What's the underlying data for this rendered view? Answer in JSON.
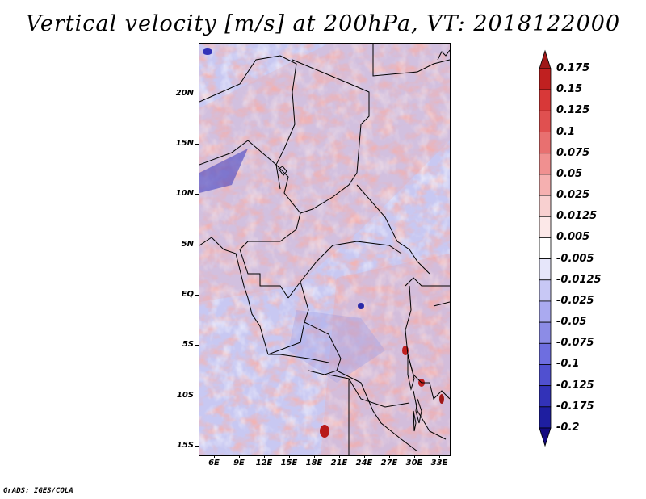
{
  "title": "Vertical velocity [m/s] at 200hPa, VT: 2018122000",
  "footer": "GrADS: IGES/COLA",
  "lat_labels": [
    "20N",
    "15N",
    "10N",
    "5N",
    "EQ",
    "5S",
    "10S",
    "15S"
  ],
  "lon_labels": [
    "6E",
    "9E",
    "12E",
    "15E",
    "18E",
    "21E",
    "24E",
    "27E",
    "30E",
    "33E"
  ],
  "colorbar": {
    "levels": [
      "0.175",
      "0.15",
      "0.125",
      "0.1",
      "0.075",
      "0.05",
      "0.025",
      "0.0125",
      "0.005",
      "-0.005",
      "-0.0125",
      "-0.025",
      "-0.05",
      "-0.075",
      "-0.1",
      "-0.125",
      "-0.175",
      "-0.2"
    ],
    "colors": [
      "#a01818",
      "#c02020",
      "#d83838",
      "#e05050",
      "#e87070",
      "#f09090",
      "#f5b0b0",
      "#f8d0d0",
      "#fce8e8",
      "#ffffff",
      "#e6e6fa",
      "#c8c8f5",
      "#aaaaf0",
      "#8c8ce6",
      "#6e6ee0",
      "#5050d0",
      "#3232b8",
      "#1e1ea0",
      "#140a80"
    ]
  }
}
